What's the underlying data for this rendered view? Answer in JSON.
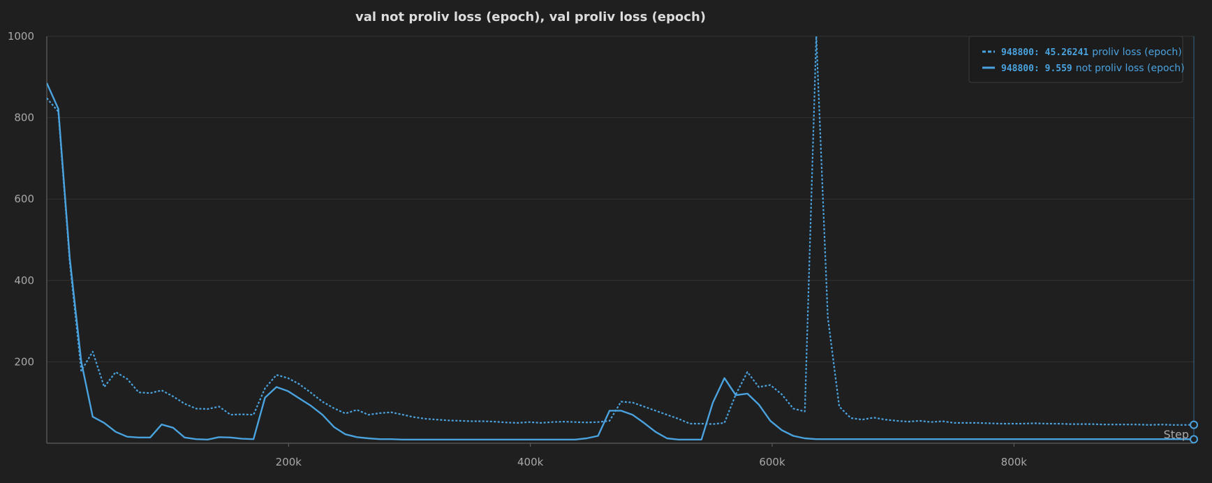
{
  "chart_data": {
    "type": "line",
    "title": "val not proliv loss (epoch), val proliv loss (epoch)",
    "xlabel": "Step",
    "ylabel": "",
    "xlim": [
      0,
      948800
    ],
    "ylim": [
      0,
      1000
    ],
    "grid": true,
    "legend_position": "top-right",
    "x_ticks": [
      200000,
      400000,
      600000,
      800000
    ],
    "x_tick_labels": [
      "200k",
      "400k",
      "600k",
      "800k"
    ],
    "y_ticks": [
      200,
      400,
      600,
      800,
      1000
    ],
    "y_tick_labels": [
      "200",
      "400",
      "600",
      "800",
      "1000"
    ],
    "series": [
      {
        "name": "proliv loss (epoch)",
        "legend_step": "948800",
        "legend_value": "45.26241",
        "style": "dashed",
        "color": "#4aa3df",
        "x": [
          0,
          9500,
          19000,
          28500,
          38000,
          47500,
          57000,
          66500,
          76000,
          85500,
          95000,
          104500,
          114000,
          123500,
          133000,
          142500,
          152000,
          161500,
          171000,
          180500,
          190000,
          199500,
          209000,
          218500,
          228000,
          237500,
          247000,
          256500,
          266000,
          275500,
          285000,
          294500,
          304000,
          313500,
          323000,
          332500,
          342000,
          351500,
          361000,
          370500,
          380000,
          389500,
          399000,
          408500,
          418000,
          427500,
          437000,
          446500,
          456000,
          465500,
          475000,
          484500,
          494000,
          503500,
          513000,
          522500,
          532000,
          541500,
          551000,
          560500,
          570000,
          579500,
          589000,
          598500,
          608000,
          617500,
          627000,
          636500,
          646000,
          655500,
          665000,
          674500,
          684000,
          693500,
          703000,
          712500,
          722000,
          731500,
          741000,
          750500,
          760000,
          769500,
          779000,
          788500,
          798000,
          807500,
          817000,
          826500,
          836000,
          845500,
          855000,
          864500,
          874000,
          883500,
          893000,
          902500,
          912000,
          921500,
          931000,
          940500,
          948800
        ],
        "values": [
          848,
          815,
          445,
          178,
          225,
          138,
          175,
          158,
          125,
          123,
          130,
          115,
          97,
          85,
          84,
          90,
          70,
          71,
          70,
          135,
          168,
          160,
          145,
          124,
          102,
          86,
          73,
          82,
          70,
          74,
          76,
          70,
          64,
          60,
          58,
          56,
          55,
          54,
          54,
          53,
          51,
          50,
          52,
          50,
          52,
          53,
          52,
          51,
          52,
          55,
          102,
          100,
          90,
          80,
          70,
          60,
          48,
          48,
          47,
          50,
          120,
          175,
          138,
          143,
          120,
          85,
          78,
          1000,
          310,
          90,
          62,
          58,
          63,
          58,
          55,
          53,
          55,
          52,
          54,
          50,
          50,
          50,
          49,
          48,
          48,
          48,
          49,
          48,
          48,
          47,
          47,
          47,
          46,
          46,
          46,
          46,
          45,
          46,
          45,
          45,
          45.26
        ]
      },
      {
        "name": "not proliv loss (epoch)",
        "legend_step": "948800",
        "legend_value": "9.559",
        "style": "solid",
        "color": "#4aa3df",
        "x": [
          0,
          9500,
          19000,
          28500,
          38000,
          47500,
          57000,
          66500,
          76000,
          85500,
          95000,
          104500,
          114000,
          123500,
          133000,
          142500,
          152000,
          161500,
          171000,
          180500,
          190000,
          199500,
          209000,
          218500,
          228000,
          237500,
          247000,
          256500,
          266000,
          275500,
          285000,
          294500,
          304000,
          313500,
          323000,
          332500,
          342000,
          351500,
          361000,
          370500,
          380000,
          389500,
          399000,
          408500,
          418000,
          427500,
          437000,
          446500,
          456000,
          465500,
          475000,
          484500,
          494000,
          503500,
          513000,
          522500,
          532000,
          541500,
          551000,
          560500,
          570000,
          579500,
          589000,
          598500,
          608000,
          617500,
          627000,
          636500,
          646000,
          655500,
          665000,
          674500,
          684000,
          693500,
          703000,
          712500,
          722000,
          731500,
          741000,
          750500,
          760000,
          769500,
          779000,
          788500,
          798000,
          807500,
          817000,
          826500,
          836000,
          845500,
          855000,
          864500,
          874000,
          883500,
          893000,
          902500,
          912000,
          921500,
          931000,
          940500,
          948800
        ],
        "values": [
          885,
          822,
          455,
          200,
          65,
          50,
          28,
          16,
          14,
          14,
          46,
          38,
          14,
          10,
          9,
          15,
          14,
          11,
          10,
          112,
          138,
          128,
          110,
          92,
          70,
          40,
          22,
          15,
          12,
          10,
          10,
          9,
          9,
          9,
          9,
          9,
          9,
          9,
          9,
          9,
          9,
          9,
          9,
          9,
          9,
          9,
          9,
          12,
          18,
          80,
          80,
          70,
          50,
          28,
          12,
          9,
          9,
          9,
          100,
          160,
          118,
          122,
          95,
          55,
          32,
          18,
          12,
          10,
          10,
          10,
          10,
          10,
          10,
          10,
          10,
          10,
          10,
          10,
          10,
          10,
          10,
          10,
          10,
          10,
          10,
          10,
          10,
          10,
          10,
          10,
          10,
          10,
          10,
          10,
          10,
          10,
          10,
          10,
          10,
          10,
          9.56
        ]
      }
    ]
  }
}
